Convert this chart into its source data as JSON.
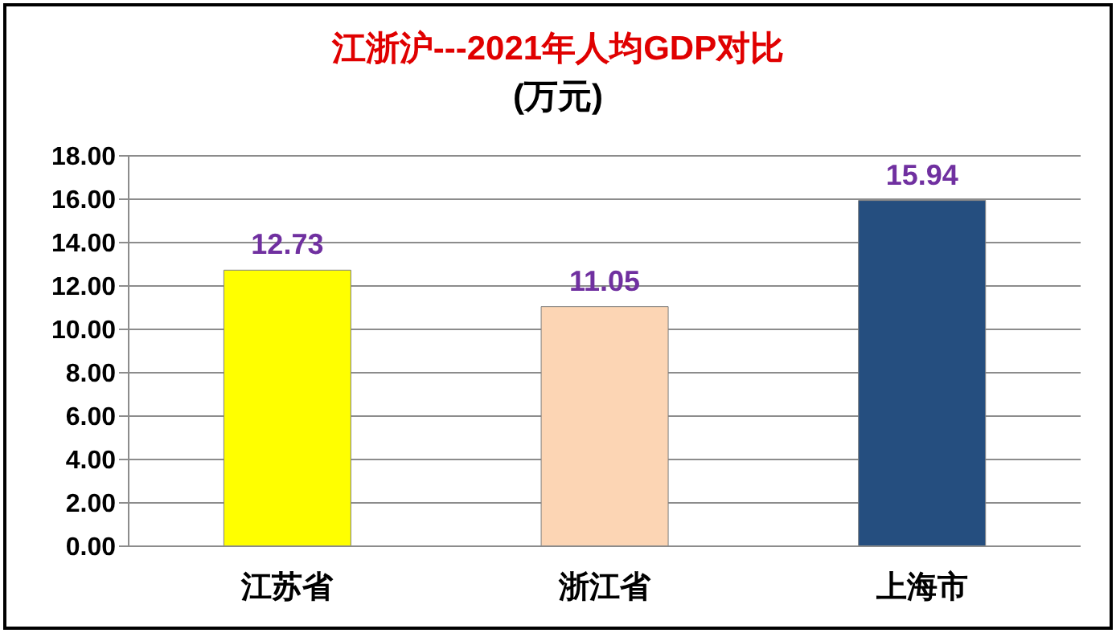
{
  "chart_data": {
    "type": "bar",
    "title": "江浙沪---2021年人均GDP对比",
    "subtitle": "(万元)",
    "categories": [
      "江苏省",
      "浙江省",
      "上海市"
    ],
    "values": [
      12.73,
      11.05,
      15.94
    ],
    "colors": [
      "#ffff00",
      "#fcd5b4",
      "#254e7f"
    ],
    "ylim": [
      0,
      18
    ],
    "yticks": [
      {
        "value": 0,
        "label": "0.00"
      },
      {
        "value": 2,
        "label": "2.00"
      },
      {
        "value": 4,
        "label": "4.00"
      },
      {
        "value": 6,
        "label": "6.00"
      },
      {
        "value": 8,
        "label": "8.00"
      },
      {
        "value": 10,
        "label": "10.00"
      },
      {
        "value": 12,
        "label": "12.00"
      },
      {
        "value": 14,
        "label": "14.00"
      },
      {
        "value": 16,
        "label": "16.00"
      },
      {
        "value": 18,
        "label": "18.00"
      }
    ],
    "grid": "y",
    "data_labels": true
  }
}
